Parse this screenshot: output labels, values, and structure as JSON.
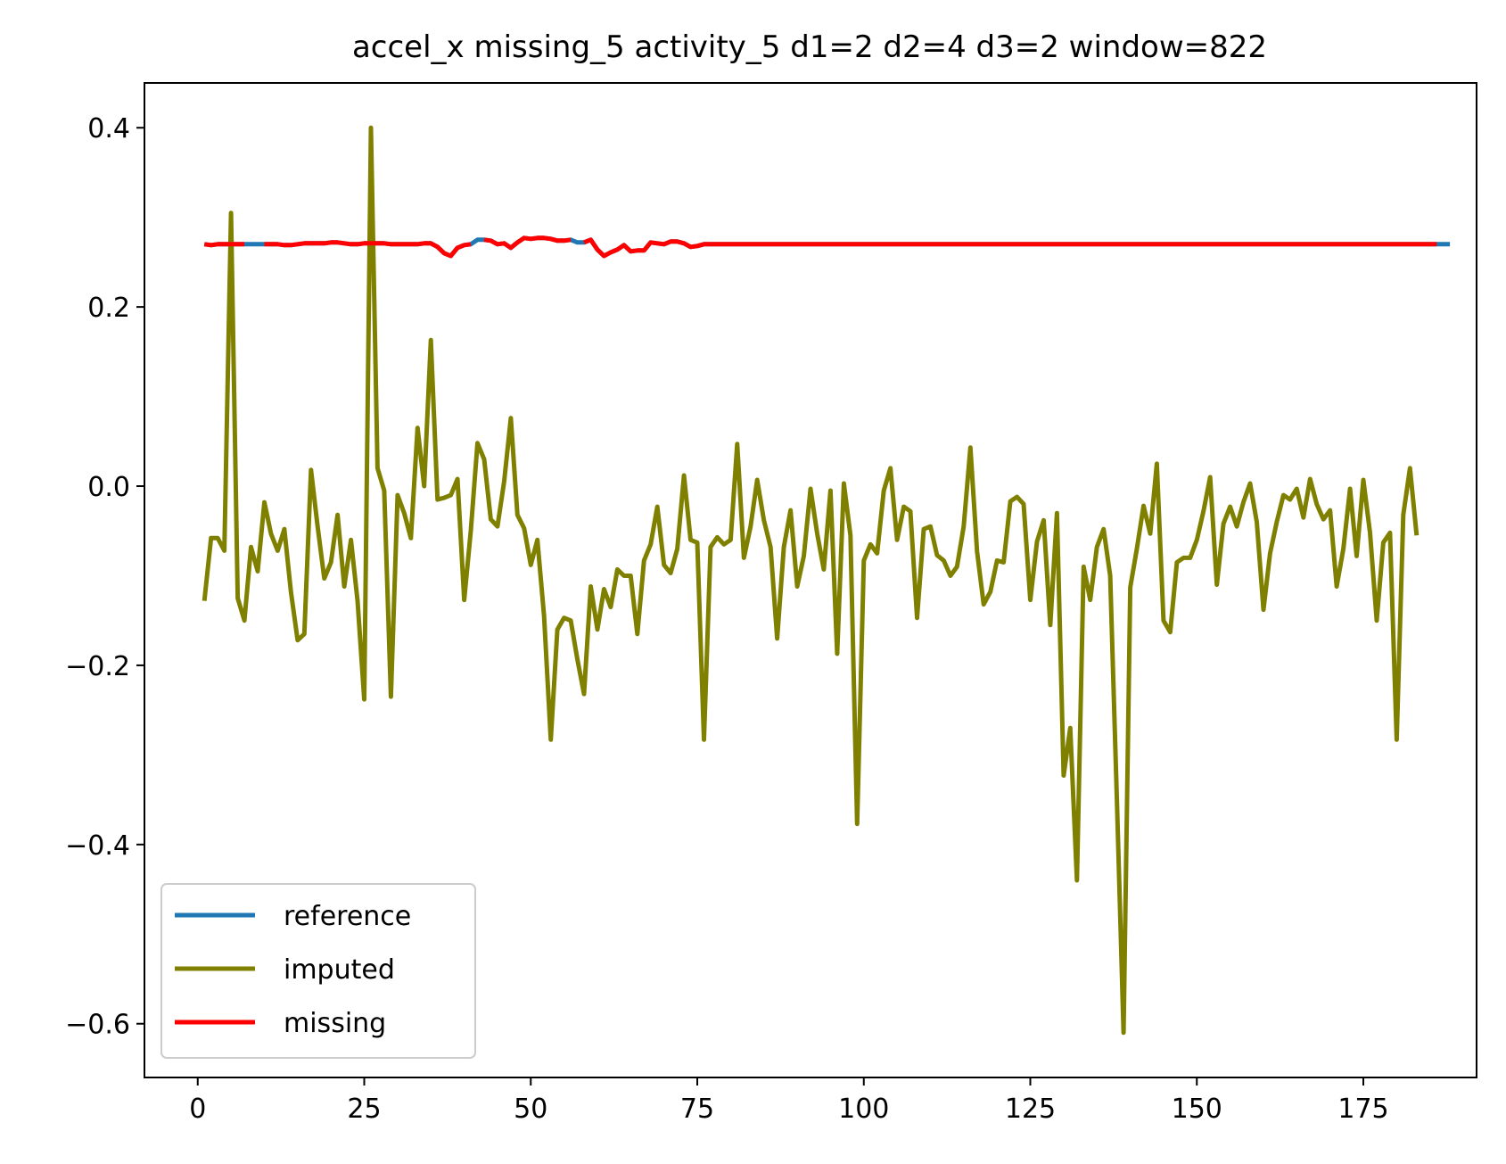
{
  "chart_data": {
    "type": "line",
    "title": "accel_x missing_5 activity_5 d1=2 d2=4 d3=2 window=822",
    "xlabel": "",
    "ylabel": "",
    "xlim": [
      -8,
      192
    ],
    "ylim": [
      -0.66,
      0.45
    ],
    "xticks": [
      0,
      25,
      50,
      75,
      100,
      125,
      150,
      175
    ],
    "yticks": [
      0.4,
      0.2,
      0.0,
      -0.2,
      -0.4,
      -0.6
    ],
    "ytick_labels": [
      "0.4",
      "0.2",
      "0.0",
      "−0.2",
      "−0.4",
      "−0.6"
    ],
    "grid": false,
    "legend_position": "lower-left",
    "series": [
      {
        "name": "reference",
        "color": "#1f77b4",
        "x_start": 1,
        "values": [
          0.27,
          0.269,
          0.27,
          0.27,
          0.27,
          0.27,
          0.27,
          0.27,
          0.27,
          0.27,
          0.27,
          0.27,
          0.269,
          0.269,
          0.27,
          0.271,
          0.271,
          0.271,
          0.271,
          0.272,
          0.272,
          0.271,
          0.27,
          0.27,
          0.271,
          0.271,
          0.271,
          0.271,
          0.27,
          0.27,
          0.27,
          0.27,
          0.27,
          0.271,
          0.271,
          0.267,
          0.26,
          0.257,
          0.266,
          0.269,
          0.27,
          0.275,
          0.275,
          0.274,
          0.27,
          0.271,
          0.266,
          0.272,
          0.277,
          0.276,
          0.277,
          0.277,
          0.276,
          0.274,
          0.274,
          0.275,
          0.272,
          0.272,
          0.275,
          0.264,
          0.257,
          0.261,
          0.264,
          0.269,
          0.262,
          0.263,
          0.263,
          0.272,
          0.271,
          0.27,
          0.273,
          0.273,
          0.271,
          0.267,
          0.268,
          0.27,
          0.27,
          0.27,
          0.27,
          0.27,
          0.27,
          0.27,
          0.27,
          0.27,
          0.27,
          0.27,
          0.27,
          0.27,
          0.27,
          0.27,
          0.27,
          0.27,
          0.27,
          0.27,
          0.27,
          0.27,
          0.27,
          0.27,
          0.27,
          0.27,
          0.27,
          0.27,
          0.27,
          0.27,
          0.27,
          0.27,
          0.27,
          0.27,
          0.27,
          0.27,
          0.27,
          0.27,
          0.27,
          0.27,
          0.27,
          0.27,
          0.27,
          0.27,
          0.27,
          0.27,
          0.27,
          0.27,
          0.27,
          0.27,
          0.27,
          0.27,
          0.27,
          0.27,
          0.27,
          0.27,
          0.27,
          0.27,
          0.27,
          0.27,
          0.27,
          0.27,
          0.27,
          0.27,
          0.27,
          0.27,
          0.27,
          0.27,
          0.27,
          0.27,
          0.27,
          0.27,
          0.27,
          0.27,
          0.27,
          0.27,
          0.27,
          0.27,
          0.27,
          0.27,
          0.27,
          0.27,
          0.27,
          0.27,
          0.27,
          0.27,
          0.27,
          0.27,
          0.27,
          0.27,
          0.27,
          0.27,
          0.27,
          0.27,
          0.27,
          0.27,
          0.27,
          0.27,
          0.27,
          0.27,
          0.27,
          0.27,
          0.27,
          0.27,
          0.27,
          0.27,
          0.27,
          0.27,
          0.27,
          0.27,
          0.27,
          0.27,
          0.27,
          0.27
        ]
      },
      {
        "name": "imputed",
        "color": "#808000",
        "x_start": 1,
        "values": [
          -0.128,
          -0.058,
          -0.058,
          -0.072,
          0.305,
          -0.125,
          -0.15,
          -0.068,
          -0.095,
          -0.018,
          -0.053,
          -0.072,
          -0.048,
          -0.118,
          -0.172,
          -0.165,
          0.018,
          -0.045,
          -0.103,
          -0.085,
          -0.032,
          -0.112,
          -0.06,
          -0.128,
          -0.238,
          0.4,
          0.02,
          -0.005,
          -0.235,
          -0.01,
          -0.03,
          -0.058,
          0.065,
          0.0,
          0.163,
          -0.015,
          -0.013,
          -0.01,
          0.008,
          -0.127,
          -0.05,
          0.048,
          0.03,
          -0.037,
          -0.045,
          0.005,
          0.076,
          -0.032,
          -0.047,
          -0.088,
          -0.06,
          -0.145,
          -0.283,
          -0.16,
          -0.147,
          -0.15,
          -0.193,
          -0.232,
          -0.112,
          -0.16,
          -0.115,
          -0.135,
          -0.093,
          -0.1,
          -0.1,
          -0.165,
          -0.083,
          -0.065,
          -0.023,
          -0.088,
          -0.097,
          -0.07,
          0.012,
          -0.06,
          -0.063,
          -0.283,
          -0.068,
          -0.057,
          -0.065,
          -0.06,
          0.047,
          -0.08,
          -0.045,
          0.007,
          -0.038,
          -0.068,
          -0.17,
          -0.068,
          -0.027,
          -0.112,
          -0.078,
          -0.003,
          -0.053,
          -0.093,
          -0.005,
          -0.187,
          0.003,
          -0.055,
          -0.377,
          -0.083,
          -0.065,
          -0.075,
          -0.005,
          0.02,
          -0.06,
          -0.023,
          -0.028,
          -0.147,
          -0.048,
          -0.045,
          -0.077,
          -0.083,
          -0.1,
          -0.09,
          -0.045,
          0.043,
          -0.073,
          -0.132,
          -0.118,
          -0.083,
          -0.085,
          -0.017,
          -0.012,
          -0.02,
          -0.127,
          -0.062,
          -0.038,
          -0.155,
          -0.03,
          -0.323,
          -0.27,
          -0.44,
          -0.09,
          -0.127,
          -0.068,
          -0.048,
          -0.1,
          -0.35,
          -0.61,
          -0.113,
          -0.07,
          -0.022,
          -0.053,
          0.025,
          -0.15,
          -0.163,
          -0.085,
          -0.08,
          -0.08,
          -0.06,
          -0.028,
          0.01,
          -0.11,
          -0.042,
          -0.023,
          -0.045,
          -0.018,
          0.003,
          -0.04,
          -0.138,
          -0.075,
          -0.04,
          -0.01,
          -0.015,
          -0.003,
          -0.035,
          0.008,
          -0.02,
          -0.037,
          -0.027,
          -0.112,
          -0.07,
          -0.003,
          -0.078,
          0.007,
          -0.052,
          -0.15,
          -0.063,
          -0.052,
          -0.283,
          -0.032,
          0.02,
          -0.055
        ]
      },
      {
        "name": "missing",
        "color": "#ff0000",
        "x_start": 1,
        "values": [
          0.27,
          0.269,
          0.27,
          0.27,
          0.27,
          0.27,
          0.27,
          null,
          null,
          0.27,
          0.27,
          0.27,
          0.269,
          0.269,
          0.27,
          0.271,
          0.271,
          0.271,
          0.271,
          0.272,
          0.272,
          0.271,
          0.27,
          0.27,
          0.271,
          0.271,
          0.271,
          0.271,
          0.27,
          0.27,
          0.27,
          0.27,
          0.27,
          0.271,
          0.271,
          0.267,
          0.26,
          0.257,
          0.266,
          0.269,
          0.27,
          null,
          0.275,
          0.274,
          0.27,
          0.271,
          0.266,
          0.272,
          0.277,
          0.276,
          0.277,
          0.277,
          0.276,
          0.274,
          0.274,
          0.275,
          null,
          0.272,
          0.275,
          0.264,
          0.257,
          0.261,
          0.264,
          0.269,
          0.262,
          0.263,
          0.263,
          0.272,
          0.271,
          0.27,
          0.273,
          0.273,
          0.271,
          0.267,
          0.268,
          0.27,
          0.27,
          0.27,
          0.27,
          0.27,
          0.27,
          0.27,
          0.27,
          0.27,
          0.27,
          0.27,
          0.27,
          0.27,
          0.27,
          0.27,
          0.27,
          0.27,
          0.27,
          0.27,
          0.27,
          0.27,
          0.27,
          0.27,
          0.27,
          0.27,
          0.27,
          0.27,
          0.27,
          0.27,
          0.27,
          0.27,
          0.27,
          0.27,
          0.27,
          0.27,
          0.27,
          0.27,
          0.27,
          0.27,
          0.27,
          0.27,
          0.27,
          0.27,
          0.27,
          0.27,
          0.27,
          0.27,
          0.27,
          0.27,
          0.27,
          0.27,
          0.27,
          0.27,
          0.27,
          0.27,
          0.27,
          0.27,
          0.27,
          0.27,
          0.27,
          0.27,
          0.27,
          0.27,
          0.27,
          0.27,
          0.27,
          0.27,
          0.27,
          0.27,
          0.27,
          0.27,
          0.27,
          0.27,
          0.27,
          0.27,
          0.27,
          0.27,
          0.27,
          0.27,
          0.27,
          0.27,
          0.27,
          0.27,
          0.27,
          0.27,
          0.27,
          0.27,
          0.27,
          0.27,
          0.27,
          0.27,
          0.27,
          0.27,
          0.27,
          0.27,
          0.27,
          0.27,
          0.27,
          0.27,
          0.27,
          0.27,
          0.27,
          0.27,
          0.27,
          0.27,
          0.27,
          0.27,
          0.27,
          0.27,
          0.27,
          0.27
        ]
      }
    ]
  }
}
